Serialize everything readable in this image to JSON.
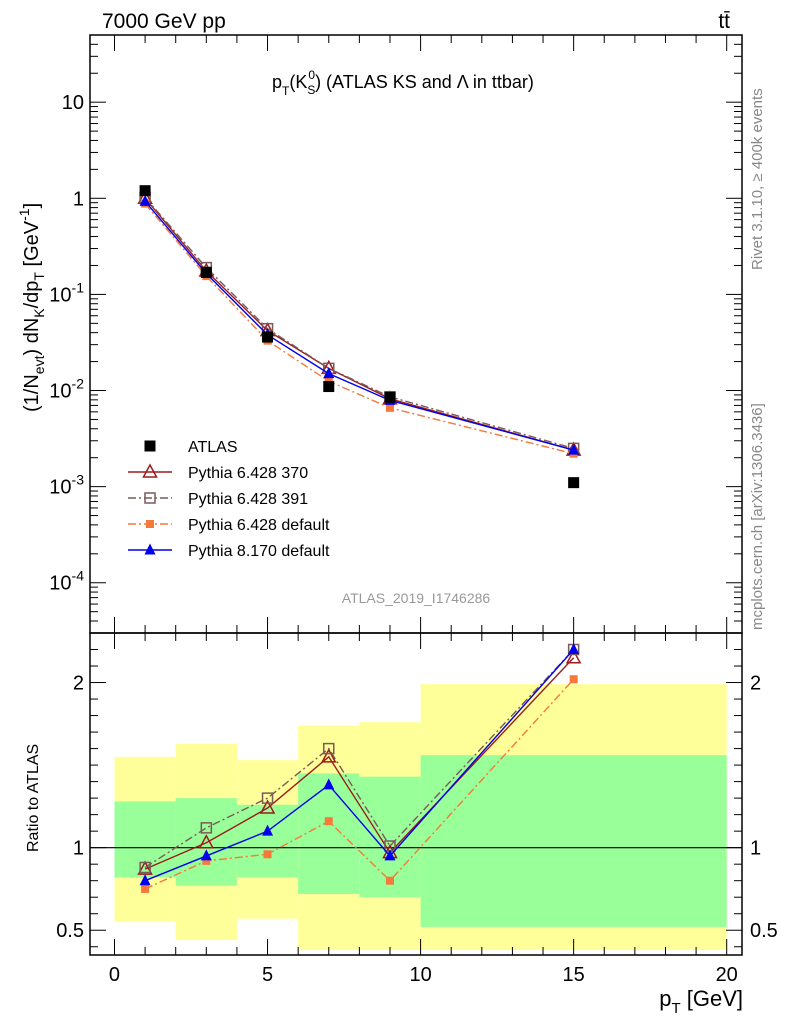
{
  "header": {
    "energy_label": "7000 GeV pp",
    "process_label": "tt̄"
  },
  "side_labels": {
    "rivet": "Rivet 3.1.10, ≥ 400k events",
    "mcplots": "mcplots.cern.ch [arXiv:1306.3436]"
  },
  "watermark": "ATLAS_2019_I1746286",
  "chart_data": [
    {
      "type": "scatter",
      "title": "p_T(K_S^0) (ATLAS KS and Λ in ttbar)",
      "xlabel": "p_T [GeV]",
      "ylabel": "(1/N_evt) dN_K/dp_T [GeV^-1]",
      "xlim": [
        -0.8,
        20.5
      ],
      "ylim": [
        3e-05,
        50
      ],
      "yscale": "log",
      "y_ticks": [
        "10^-4",
        "10^-3",
        "10^-2",
        "10^-1",
        "1",
        "10"
      ],
      "legend_position": "lower-left",
      "series": [
        {
          "name": "ATLAS",
          "color": "#000000",
          "marker": "filled-square",
          "line": "none",
          "x": [
            1,
            3,
            5,
            7,
            9,
            15
          ],
          "y": [
            1.2,
            0.17,
            0.036,
            0.011,
            0.0085,
            0.0011
          ]
        },
        {
          "name": "Pythia 6.428 370",
          "color": "#9b1c1c",
          "marker": "open-triangle",
          "line": "solid",
          "x": [
            1,
            3,
            5,
            7,
            9,
            15
          ],
          "y": [
            1.0,
            0.175,
            0.042,
            0.017,
            0.0082,
            0.0024
          ]
        },
        {
          "name": "Pythia 6.428 391",
          "color": "#7a5a5a",
          "marker": "open-square",
          "line": "dash-dot",
          "x": [
            1,
            3,
            5,
            7,
            9,
            15
          ],
          "y": [
            1.02,
            0.19,
            0.044,
            0.017,
            0.0086,
            0.0025
          ]
        },
        {
          "name": "Pythia 6.428 default",
          "color": "#f5793a",
          "marker": "filled-square-small",
          "line": "dash-dot",
          "x": [
            1,
            3,
            5,
            7,
            9,
            15
          ],
          "y": [
            0.88,
            0.155,
            0.033,
            0.0125,
            0.0066,
            0.0022
          ]
        },
        {
          "name": "Pythia 8.170 default",
          "color": "#0000ee",
          "marker": "filled-triangle",
          "line": "solid",
          "x": [
            1,
            3,
            5,
            7,
            9,
            15
          ],
          "y": [
            0.93,
            0.165,
            0.038,
            0.015,
            0.0079,
            0.0024
          ]
        }
      ]
    },
    {
      "type": "line",
      "title": "",
      "xlabel": "p_T [GeV]",
      "ylabel": "Ratio to ATLAS",
      "xlim": [
        -0.8,
        20.5
      ],
      "ylim": [
        0.35,
        2.3
      ],
      "x_ticks": [
        0,
        5,
        10,
        15,
        20
      ],
      "y_ticks": [
        0.5,
        1,
        2
      ],
      "reference_line": 1,
      "bands": [
        {
          "x": [
            0,
            2
          ],
          "inner": [
            0.82,
            1.28
          ],
          "outer": [
            0.55,
            1.55
          ]
        },
        {
          "x": [
            2,
            4
          ],
          "inner": [
            0.77,
            1.3
          ],
          "outer": [
            0.44,
            1.63
          ]
        },
        {
          "x": [
            4,
            6
          ],
          "inner": [
            0.82,
            1.26
          ],
          "outer": [
            0.57,
            1.53
          ]
        },
        {
          "x": [
            6,
            8
          ],
          "inner": [
            0.72,
            1.45
          ],
          "outer": [
            0.38,
            1.74
          ]
        },
        {
          "x": [
            8,
            10
          ],
          "inner": [
            0.7,
            1.43
          ],
          "outer": [
            0.38,
            1.76
          ]
        },
        {
          "x": [
            10,
            20
          ],
          "inner": [
            0.52,
            1.56
          ],
          "outer": [
            0.38,
            1.99
          ]
        }
      ],
      "band_colors": {
        "inner": "#99ff99",
        "outer": "#ffff99"
      },
      "series": [
        {
          "name": "Pythia 6.428 370",
          "color": "#9b1c1c",
          "marker": "open-triangle",
          "line": "solid",
          "x": [
            1,
            3,
            5,
            7,
            9,
            15
          ],
          "y": [
            0.87,
            1.03,
            1.24,
            1.55,
            0.97,
            2.15
          ]
        },
        {
          "name": "Pythia 6.428 391",
          "color": "#7a5a5a",
          "marker": "open-square",
          "line": "dash-dot",
          "x": [
            1,
            3,
            5,
            7,
            9,
            15
          ],
          "y": [
            0.88,
            1.12,
            1.3,
            1.6,
            1.01,
            2.2
          ]
        },
        {
          "name": "Pythia 6.428 default",
          "color": "#f5793a",
          "marker": "filled-square-small",
          "line": "dash-dot",
          "x": [
            1,
            3,
            5,
            7,
            9,
            15
          ],
          "y": [
            0.75,
            0.92,
            0.96,
            1.16,
            0.8,
            2.02
          ]
        },
        {
          "name": "Pythia 8.170 default",
          "color": "#0000ee",
          "marker": "filled-triangle",
          "line": "solid",
          "x": [
            1,
            3,
            5,
            7,
            9,
            15
          ],
          "y": [
            0.8,
            0.95,
            1.1,
            1.38,
            0.95,
            2.2
          ]
        }
      ]
    }
  ]
}
